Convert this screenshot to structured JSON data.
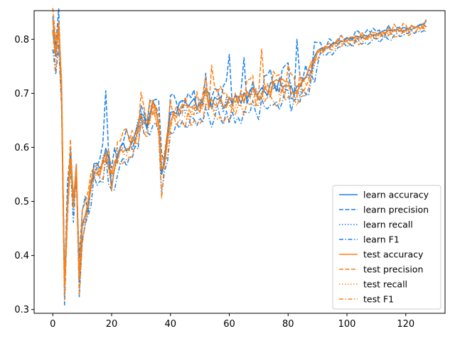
{
  "chart_data": {
    "type": "line",
    "title": "",
    "xlabel": "",
    "ylabel": "",
    "xlim": [
      -6.35,
      133.35
    ],
    "ylim": [
      0.293,
      0.853
    ],
    "xticks": [
      0,
      20,
      40,
      60,
      80,
      100,
      120
    ],
    "yticks": [
      0.3,
      0.4,
      0.5,
      0.6,
      0.7,
      0.8
    ],
    "grid": false,
    "legend_position": "lower-right",
    "x_series": {
      "start": 0,
      "step": 1,
      "count": 128
    },
    "x_keypoints": [
      0,
      1,
      2,
      3,
      4,
      5,
      6,
      7,
      8,
      9,
      10,
      12,
      14,
      16,
      18,
      20,
      22,
      24,
      26,
      28,
      30,
      32,
      34,
      36,
      37,
      38,
      40,
      42,
      44,
      46,
      48,
      50,
      52,
      54,
      56,
      58,
      60,
      62,
      64,
      66,
      68,
      70,
      72,
      74,
      76,
      78,
      80,
      82,
      84,
      86,
      88,
      90,
      95,
      100,
      105,
      110,
      115,
      120,
      125,
      127
    ],
    "base_curve": [
      0.825,
      0.78,
      0.83,
      0.7,
      0.34,
      0.5,
      0.58,
      0.5,
      0.56,
      0.36,
      0.45,
      0.5,
      0.57,
      0.55,
      0.6,
      0.54,
      0.59,
      0.6,
      0.6,
      0.62,
      0.67,
      0.64,
      0.68,
      0.65,
      0.56,
      0.58,
      0.66,
      0.67,
      0.68,
      0.67,
      0.68,
      0.67,
      0.7,
      0.68,
      0.69,
      0.68,
      0.69,
      0.69,
      0.69,
      0.7,
      0.7,
      0.7,
      0.705,
      0.71,
      0.715,
      0.72,
      0.72,
      0.7,
      0.71,
      0.73,
      0.75,
      0.78,
      0.79,
      0.8,
      0.805,
      0.81,
      0.815,
      0.82,
      0.825,
      0.825
    ],
    "series": [
      {
        "name": "learn accuracy",
        "color": "#1a80e6",
        "style": "solid",
        "offset": 0.0,
        "noise": 0.012
      },
      {
        "name": "learn precision",
        "color": "#1a80e6",
        "style": "dashed",
        "offset": 0.008,
        "noise": 0.03
      },
      {
        "name": "learn recall",
        "color": "#1a80e6",
        "style": "dotted",
        "offset": -0.004,
        "noise": 0.014
      },
      {
        "name": "learn F1",
        "color": "#1a80e6",
        "style": "dashdot",
        "offset": -0.03,
        "noise": 0.02
      },
      {
        "name": "test accuracy",
        "color": "#ff7f0e",
        "style": "solid",
        "offset": -0.002,
        "noise": 0.013
      },
      {
        "name": "test precision",
        "color": "#ff7f0e",
        "style": "dashed",
        "offset": 0.006,
        "noise": 0.03
      },
      {
        "name": "test recall",
        "color": "#ff7f0e",
        "style": "dotted",
        "offset": -0.006,
        "noise": 0.015
      },
      {
        "name": "test F1",
        "color": "#ff7f0e",
        "style": "dashdot",
        "offset": -0.02,
        "noise": 0.02
      }
    ],
    "annotations": [
      {
        "x": 18,
        "y": 0.705,
        "series": "learn precision"
      },
      {
        "x": 54,
        "y": 0.752,
        "series": "test precision"
      },
      {
        "x": 60,
        "y": 0.772,
        "series": "learn precision"
      },
      {
        "x": 65,
        "y": 0.766,
        "series": "learn precision"
      },
      {
        "x": 71,
        "y": 0.782,
        "series": "test precision"
      },
      {
        "x": 83,
        "y": 0.8,
        "series": "learn precision"
      },
      {
        "x": 4,
        "y": 0.318,
        "series": "test F1"
      },
      {
        "x": 9,
        "y": 0.328,
        "series": "test F1"
      },
      {
        "x": 37,
        "y": 0.505,
        "series": "test F1"
      }
    ]
  }
}
